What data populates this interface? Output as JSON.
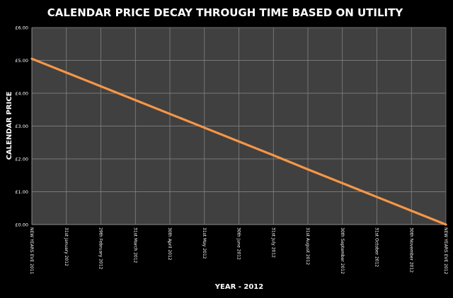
{
  "chart_data": {
    "type": "line",
    "title": "CALENDAR PRICE DECAY THROUGH TIME BASED ON UTILITY",
    "xlabel": "YEAR - 2012",
    "ylabel": "CALENDAR PRICE",
    "categories": [
      "NEW YEARS EVE 2011",
      "31st January 2012",
      "29th February 2012",
      "31st March 2012",
      "30th April 2012",
      "31st May 2012",
      "30th June 2012",
      "31st July 2012",
      "31st August 2012",
      "30th September 2012",
      "31st October 2012",
      "30th November 2012",
      "NEW YEARS EVE 2012"
    ],
    "series": [
      {
        "values": [
          5.05,
          4.63,
          4.21,
          3.79,
          3.37,
          2.95,
          2.53,
          2.11,
          1.68,
          1.26,
          0.84,
          0.42,
          0.0
        ]
      }
    ],
    "yticks": [
      "£0.00",
      "£1.00",
      "£2.00",
      "£3.00",
      "£4.00",
      "£5.00",
      "£6.00"
    ],
    "ylim": [
      0,
      6
    ],
    "grid": true,
    "colors": {
      "background": "#000000",
      "plot_area": "#404040",
      "gridline": "#8a8a8a",
      "line": "#f79646",
      "text": "#ffffff"
    }
  }
}
